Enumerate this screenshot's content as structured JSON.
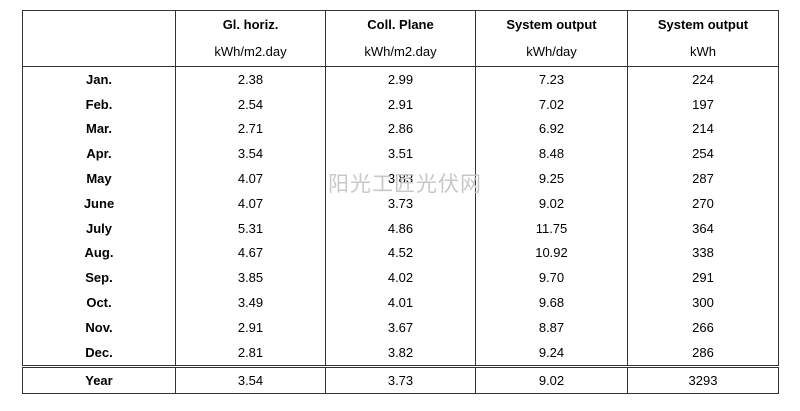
{
  "header": {
    "columns": [
      {
        "title": "Gl. horiz.",
        "unit": "kWh/m2.day"
      },
      {
        "title": "Coll. Plane",
        "unit": "kWh/m2.day"
      },
      {
        "title": "System output",
        "unit": "kWh/day"
      },
      {
        "title": "System output",
        "unit": "kWh"
      }
    ]
  },
  "rows": [
    {
      "label": "Jan.",
      "values": [
        "2.38",
        "2.99",
        "7.23",
        "224"
      ]
    },
    {
      "label": "Feb.",
      "values": [
        "2.54",
        "2.91",
        "7.02",
        "197"
      ]
    },
    {
      "label": "Mar.",
      "values": [
        "2.71",
        "2.86",
        "6.92",
        "214"
      ]
    },
    {
      "label": "Apr.",
      "values": [
        "3.54",
        "3.51",
        "8.48",
        "254"
      ]
    },
    {
      "label": "May",
      "values": [
        "4.07",
        "3.83",
        "9.25",
        "287"
      ]
    },
    {
      "label": "June",
      "values": [
        "4.07",
        "3.73",
        "9.02",
        "270"
      ]
    },
    {
      "label": "July",
      "values": [
        "5.31",
        "4.86",
        "11.75",
        "364"
      ]
    },
    {
      "label": "Aug.",
      "values": [
        "4.67",
        "4.52",
        "10.92",
        "338"
      ]
    },
    {
      "label": "Sep.",
      "values": [
        "3.85",
        "4.02",
        "9.70",
        "291"
      ]
    },
    {
      "label": "Oct.",
      "values": [
        "3.49",
        "4.01",
        "9.68",
        "300"
      ]
    },
    {
      "label": "Nov.",
      "values": [
        "2.91",
        "3.67",
        "8.87",
        "266"
      ]
    },
    {
      "label": "Dec.",
      "values": [
        "2.81",
        "3.82",
        "9.24",
        "286"
      ]
    }
  ],
  "total": {
    "label": "Year",
    "values": [
      "3.54",
      "3.73",
      "9.02",
      "3293"
    ]
  },
  "watermark": "阳光工匠光伏网"
}
